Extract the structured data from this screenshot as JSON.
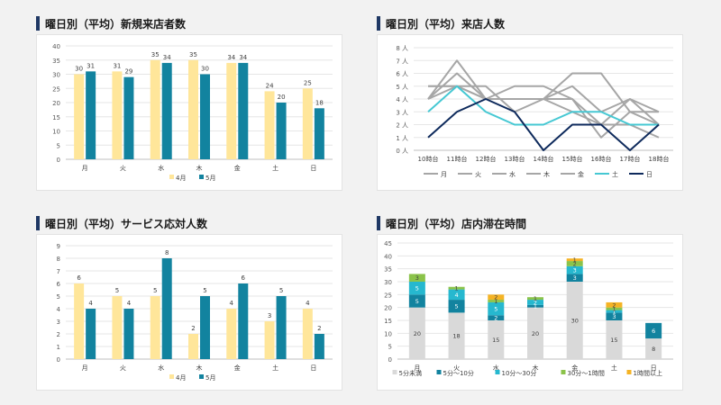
{
  "panels": {
    "p1": {
      "title": "曜日別（平均）新規来店者数"
    },
    "p2": {
      "title": "曜日別（平均）来店人数"
    },
    "p3": {
      "title": "曜日別（平均）サービス応対人数"
    },
    "p4": {
      "title": "曜日別（平均）店内滞在時間"
    }
  },
  "chart_data": [
    {
      "type": "bar",
      "title": "曜日別（平均）新規来店者数",
      "categories": [
        "月",
        "火",
        "水",
        "木",
        "金",
        "土",
        "日"
      ],
      "ylim": [
        0,
        40
      ],
      "yticks": [
        "0",
        "5",
        "10",
        "15",
        "20",
        "25",
        "30",
        "35",
        "40"
      ],
      "series": [
        {
          "name": "4月",
          "values": [
            30,
            31,
            35,
            35,
            34,
            24,
            25
          ],
          "color": "#ffe69a"
        },
        {
          "name": "5月",
          "values": [
            31,
            29,
            34,
            30,
            34,
            20,
            18
          ],
          "color": "#12839f"
        }
      ],
      "legend": "bottom"
    },
    {
      "type": "line",
      "title": "曜日別（平均）来店人数",
      "categories": [
        "10時台",
        "11時台",
        "12時台",
        "13時台",
        "14時台",
        "15時台",
        "16時台",
        "17時台",
        "18時台"
      ],
      "ylim": [
        0,
        8
      ],
      "yticks": [
        "0 人",
        "1 人",
        "2 人",
        "3 人",
        "4 人",
        "5 人",
        "6 人",
        "7 人",
        "8 人"
      ],
      "series": [
        {
          "name": "月",
          "values": [
            4,
            7,
            4,
            4,
            4,
            4,
            2,
            2,
            1
          ],
          "color": "#a6a6a6"
        },
        {
          "name": "火",
          "values": [
            5,
            5,
            5,
            3,
            4,
            6,
            6,
            3,
            2
          ],
          "color": "#a6a6a6"
        },
        {
          "name": "水",
          "values": [
            4,
            6,
            4,
            5,
            5,
            4,
            1,
            3,
            3
          ],
          "color": "#a6a6a6"
        },
        {
          "name": "木",
          "values": [
            4,
            5,
            4,
            4,
            4,
            5,
            3,
            4,
            2
          ],
          "color": "#a6a6a6"
        },
        {
          "name": "金",
          "values": [
            5,
            5,
            4,
            4,
            4,
            3,
            2,
            4,
            3
          ],
          "color": "#a6a6a6"
        },
        {
          "name": "土",
          "values": [
            3,
            5,
            3,
            2,
            2,
            3,
            3,
            2,
            2
          ],
          "color": "#46c8d3"
        },
        {
          "name": "日",
          "values": [
            1,
            3,
            4,
            3,
            0,
            2,
            2,
            0,
            2
          ],
          "color": "#0e2a5c"
        }
      ],
      "legend": "bottom"
    },
    {
      "type": "bar",
      "title": "曜日別（平均）サービス応対人数",
      "categories": [
        "月",
        "火",
        "水",
        "木",
        "金",
        "土",
        "日"
      ],
      "ylim": [
        0,
        9
      ],
      "yticks": [
        "0",
        "1",
        "2",
        "3",
        "4",
        "5",
        "6",
        "7",
        "8",
        "9"
      ],
      "series": [
        {
          "name": "4月",
          "values": [
            6,
            5,
            5,
            2,
            4,
            3,
            4
          ],
          "color": "#ffe69a"
        },
        {
          "name": "5月",
          "values": [
            4,
            4,
            8,
            5,
            6,
            5,
            2
          ],
          "color": "#12839f"
        }
      ],
      "legend": "bottom"
    },
    {
      "type": "bar",
      "stacked": true,
      "title": "曜日別（平均）店内滞在時間",
      "categories": [
        "月",
        "火",
        "水",
        "木",
        "金",
        "土",
        "日"
      ],
      "ylim": [
        0,
        45
      ],
      "yticks": [
        "0",
        "5",
        "10",
        "15",
        "20",
        "25",
        "30",
        "35",
        "40",
        "45"
      ],
      "series": [
        {
          "name": "5分未満",
          "values": [
            20,
            18,
            15,
            20,
            30,
            15,
            8
          ],
          "color": "#d9d9d9",
          "labelColor": "#404040"
        },
        {
          "name": "5分〜10分",
          "values": [
            5,
            5,
            2,
            1,
            3,
            3,
            6
          ],
          "color": "#12839f",
          "labelColor": "#ffffff"
        },
        {
          "name": "10分〜30分",
          "values": [
            5,
            4,
            5,
            2,
            3,
            1,
            0
          ],
          "color": "#26b8cf",
          "labelColor": "#ffffff"
        },
        {
          "name": "30分〜1時間",
          "values": [
            3,
            1,
            1,
            1,
            2,
            1,
            0
          ],
          "color": "#8bc34a",
          "labelColor": "#404040"
        },
        {
          "name": "1時間以上",
          "values": [
            0,
            0,
            2,
            0,
            1,
            2,
            0
          ],
          "color": "#f5b324",
          "labelColor": "#404040"
        }
      ],
      "legend": "bottom"
    }
  ]
}
